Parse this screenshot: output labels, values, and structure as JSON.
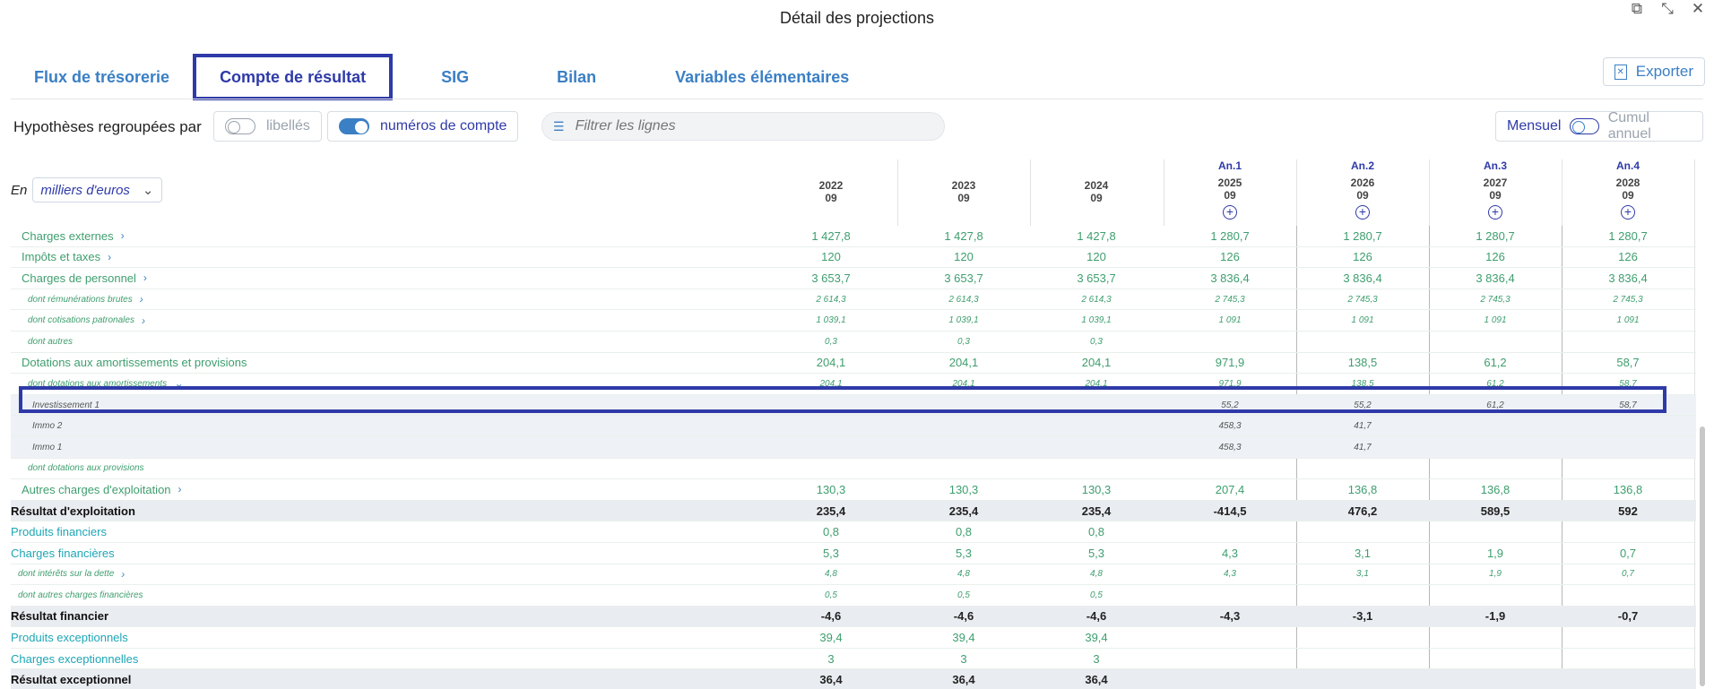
{
  "window": {
    "title": "Détail des projections",
    "icons": [
      "open-external-icon",
      "collapse-icon",
      "close-icon"
    ]
  },
  "tabs": [
    {
      "label": "Flux de trésorerie",
      "active": false
    },
    {
      "label": "Compte de résultat",
      "active": true
    },
    {
      "label": "SIG",
      "active": false
    },
    {
      "label": "Bilan",
      "active": false
    },
    {
      "label": "Variables élémentaires",
      "active": false
    }
  ],
  "export_label": "Exporter",
  "filters": {
    "group_label": "Hypothèses regroupées par",
    "libelles_label": "libellés",
    "libelles_on": false,
    "comptes_label": "numéros de compte",
    "comptes_on": true,
    "search_placeholder": "Filtrer les lignes",
    "mensuel_label": "Mensuel",
    "cumul_label": "Cumul annuel"
  },
  "unit": {
    "prefix": "En",
    "value": "milliers d'euros"
  },
  "columns": [
    {
      "an": "",
      "year": "2022",
      "month": "09",
      "plus": false
    },
    {
      "an": "",
      "year": "2023",
      "month": "09",
      "plus": false
    },
    {
      "an": "",
      "year": "2024",
      "month": "09",
      "plus": false
    },
    {
      "an": "An.1",
      "year": "2025",
      "month": "09",
      "plus": true
    },
    {
      "an": "An.2",
      "year": "2026",
      "month": "09",
      "plus": true
    },
    {
      "an": "An.3",
      "year": "2027",
      "month": "09",
      "plus": true
    },
    {
      "an": "An.4",
      "year": "2028",
      "month": "09",
      "plus": true
    }
  ],
  "rows": [
    {
      "type": "main",
      "label": "Charges externes",
      "chevron": "right",
      "values": [
        "1 427,8",
        "1 427,8",
        "1 427,8",
        "1 280,7",
        "1 280,7",
        "1 280,7",
        "1 280,7"
      ]
    },
    {
      "type": "main",
      "label": "Impôts et taxes",
      "chevron": "right",
      "values": [
        "120",
        "120",
        "120",
        "126",
        "126",
        "126",
        "126"
      ]
    },
    {
      "type": "main",
      "label": "Charges de personnel",
      "chevron": "right",
      "values": [
        "3 653,7",
        "3 653,7",
        "3 653,7",
        "3 836,4",
        "3 836,4",
        "3 836,4",
        "3 836,4"
      ]
    },
    {
      "type": "sub",
      "label": "dont rémunérations brutes",
      "chevron": "right",
      "values": [
        "2 614,3",
        "2 614,3",
        "2 614,3",
        "2 745,3",
        "2 745,3",
        "2 745,3",
        "2 745,3"
      ]
    },
    {
      "type": "sub",
      "label": "dont cotisations patronales",
      "chevron": "right",
      "values": [
        "1 039,1",
        "1 039,1",
        "1 039,1",
        "1 091",
        "1 091",
        "1 091",
        "1 091"
      ]
    },
    {
      "type": "sub",
      "label": "dont autres",
      "chevron": "",
      "values": [
        "0,3",
        "0,3",
        "0,3",
        "",
        "",
        "",
        ""
      ]
    },
    {
      "type": "main",
      "label": "Dotations aux amortissements et provisions",
      "chevron": "",
      "values": [
        "204,1",
        "204,1",
        "204,1",
        "971,9",
        "138,5",
        "61,2",
        "58,7"
      ]
    },
    {
      "type": "sub",
      "label": "dont dotations aux amortissements",
      "chevron": "down",
      "values": [
        "204,1",
        "204,1",
        "204,1",
        "971,9",
        "138,5",
        "61,2",
        "58,7"
      ]
    },
    {
      "type": "invest",
      "label": "Investissement 1",
      "chevron": "",
      "values": [
        "",
        "",
        "",
        "55,2",
        "55,2",
        "61,2",
        "58,7"
      ]
    },
    {
      "type": "invest",
      "label": "Immo 2",
      "chevron": "",
      "values": [
        "",
        "",
        "",
        "458,3",
        "41,7",
        "",
        ""
      ]
    },
    {
      "type": "invest",
      "label": "Immo 1",
      "chevron": "",
      "values": [
        "",
        "",
        "",
        "458,3",
        "41,7",
        "",
        ""
      ]
    },
    {
      "type": "sub",
      "label": "dont dotations aux provisions",
      "chevron": "",
      "values": [
        "",
        "",
        "",
        "",
        "",
        "",
        ""
      ]
    },
    {
      "type": "main",
      "label": "Autres charges d'exploitation",
      "chevron": "right",
      "values": [
        "130,3",
        "130,3",
        "130,3",
        "207,4",
        "136,8",
        "136,8",
        "136,8"
      ]
    },
    {
      "type": "total",
      "label": "Résultat d'exploitation",
      "chevron": "",
      "values": [
        "235,4",
        "235,4",
        "235,4",
        "-414,5",
        "476,2",
        "589,5",
        "592"
      ]
    },
    {
      "type": "fin",
      "label": "Produits financiers",
      "chevron": "",
      "values": [
        "0,8",
        "0,8",
        "0,8",
        "",
        "",
        "",
        ""
      ]
    },
    {
      "type": "fin",
      "label": "Charges financières",
      "chevron": "",
      "values": [
        "5,3",
        "5,3",
        "5,3",
        "4,3",
        "3,1",
        "1,9",
        "0,7"
      ]
    },
    {
      "type": "finsub",
      "label": "dont intérêts sur la dette",
      "chevron": "right",
      "values": [
        "4,8",
        "4,8",
        "4,8",
        "4,3",
        "3,1",
        "1,9",
        "0,7"
      ]
    },
    {
      "type": "finsub",
      "label": "dont autres charges financières",
      "chevron": "",
      "values": [
        "0,5",
        "0,5",
        "0,5",
        "",
        "",
        "",
        ""
      ]
    },
    {
      "type": "total",
      "label": "Résultat financier",
      "chevron": "",
      "values": [
        "-4,6",
        "-4,6",
        "-4,6",
        "-4,3",
        "-3,1",
        "-1,9",
        "-0,7"
      ]
    },
    {
      "type": "fin",
      "label": "Produits exceptionnels",
      "chevron": "",
      "values": [
        "39,4",
        "39,4",
        "39,4",
        "",
        "",
        "",
        ""
      ]
    },
    {
      "type": "fin",
      "label": "Charges exceptionnelles",
      "chevron": "",
      "values": [
        "3",
        "3",
        "3",
        "",
        "",
        "",
        ""
      ]
    },
    {
      "type": "total",
      "label": "Résultat exceptionnel",
      "chevron": "",
      "values": [
        "36,4",
        "36,4",
        "36,4",
        "",
        "",
        "",
        ""
      ]
    }
  ],
  "colors": {
    "accent": "#2f3aa8",
    "link": "#3b7fc4",
    "green": "#3f9e6f",
    "teal": "#1ea6b5"
  }
}
